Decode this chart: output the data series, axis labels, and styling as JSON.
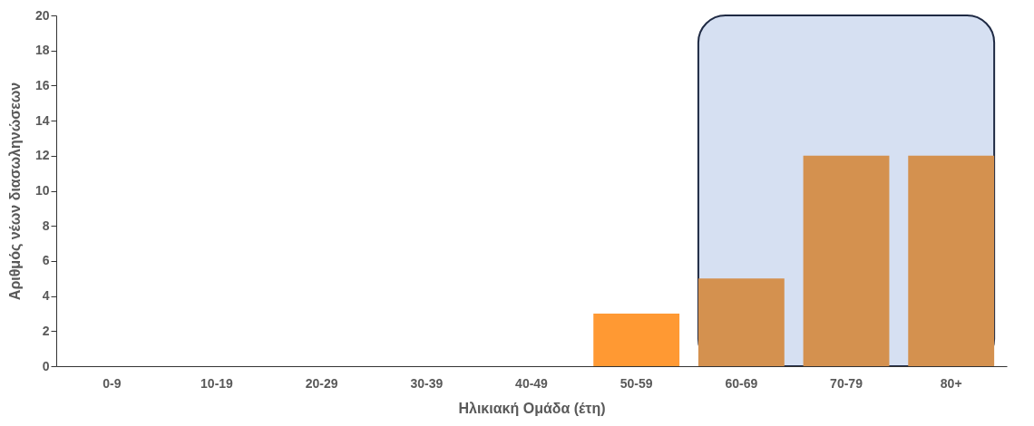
{
  "chart_data": {
    "type": "bar",
    "xlabel": "Ηλικιακή Ομάδα (έτη)",
    "ylabel": "Αριθμός νέων διασωληνώσεων",
    "categories": [
      "0-9",
      "10-19",
      "20-29",
      "30-39",
      "40-49",
      "50-59",
      "60-69",
      "70-79",
      "80+"
    ],
    "values": [
      0,
      0,
      0,
      0,
      0,
      3,
      5,
      12,
      12
    ],
    "colors": [
      "#ff9933",
      "#ff9933",
      "#ff9933",
      "#ff9933",
      "#ff9933",
      "#ff9933",
      "#d4914f",
      "#d4914f",
      "#d4914f"
    ],
    "ylim": [
      0,
      20
    ],
    "yticks": [
      0,
      2,
      4,
      6,
      8,
      10,
      12,
      14,
      16,
      18,
      20
    ],
    "grid": false,
    "bands": [
      {
        "axis": "x",
        "from": "60-69",
        "to": "80+",
        "color": "#d6e0f2"
      }
    ]
  }
}
